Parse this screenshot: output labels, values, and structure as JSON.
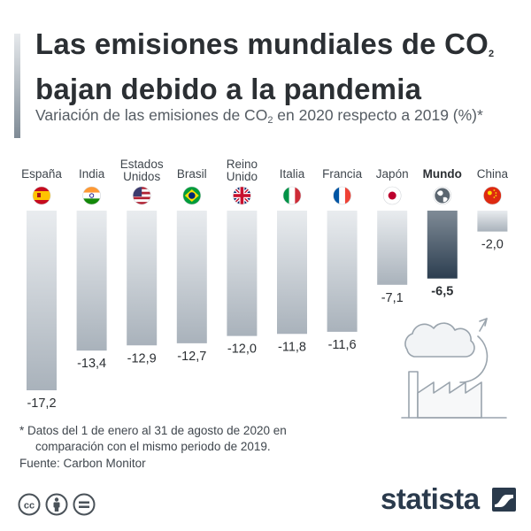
{
  "header": {
    "title": "Las emisiones mundiales de CO₂ bajan debido a la pandemia",
    "subtitle": "Variación de las emisiones de CO₂ en 2020 respecto a 2019 (%)*"
  },
  "chart_data": {
    "type": "bar",
    "categories": [
      "España",
      "India",
      "Estados Unidos",
      "Brasil",
      "Reino Unido",
      "Italia",
      "Francia",
      "Japón",
      "Mundo",
      "China"
    ],
    "values": [
      -17.2,
      -13.4,
      -12.9,
      -12.7,
      -12.0,
      -11.8,
      -11.6,
      -7.1,
      -6.5,
      -2.0
    ],
    "value_labels": [
      "-17,2",
      "-13,4",
      "-12,9",
      "-12,7",
      "-12,0",
      "-11,8",
      "-11,6",
      "-7,1",
      "-6,5",
      "-2,0"
    ],
    "highlight": "Mundo",
    "ylim": [
      -17.2,
      0
    ],
    "flag_icons": [
      "spain-flag-icon",
      "india-flag-icon",
      "usa-flag-icon",
      "brazil-flag-icon",
      "uk-flag-icon",
      "italy-flag-icon",
      "france-flag-icon",
      "japan-flag-icon",
      "globe-icon",
      "china-flag-icon"
    ],
    "colors": {
      "bar_top": "#a9b2bb",
      "bar_bottom": "#e9ecef",
      "highlight_top": "#2c3e50",
      "highlight_bottom": "#7f8b96"
    }
  },
  "footer": {
    "footnote_line1": "* Datos del 1 de enero al 31 de agosto de 2020 en",
    "footnote_line2": "comparación con el mismo periodo de 2019.",
    "source": "Fuente: Carbon Monitor",
    "brand": "statista",
    "license_icons": [
      "cc-icon",
      "attribution-icon",
      "no-derivatives-icon"
    ]
  }
}
